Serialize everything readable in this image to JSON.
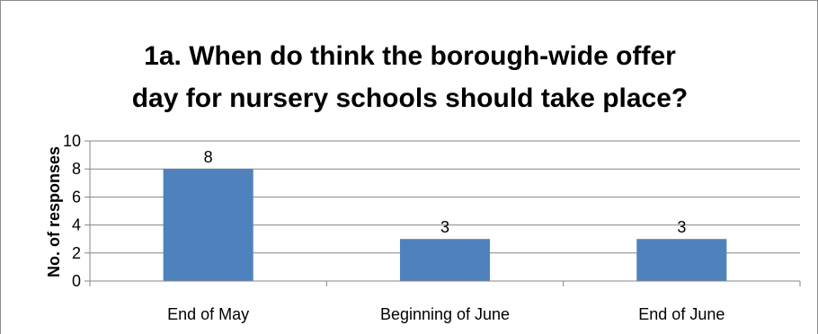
{
  "chart_data": {
    "type": "bar",
    "title_lines": [
      "1a. When do think the borough-wide offer",
      "day for nursery schools should take place?"
    ],
    "categories": [
      "End of May",
      "Beginning of June",
      "End of June"
    ],
    "values": [
      8,
      3,
      3
    ],
    "data_labels": [
      "8",
      "3",
      "3"
    ],
    "xlabel": "",
    "ylabel": "No. of responses",
    "ylim": [
      0,
      10
    ],
    "yticks": [
      0,
      2,
      4,
      6,
      8,
      10
    ],
    "grid": true,
    "legend": "none",
    "bar_color": "#4F81BD",
    "grid_color": "#868686"
  }
}
